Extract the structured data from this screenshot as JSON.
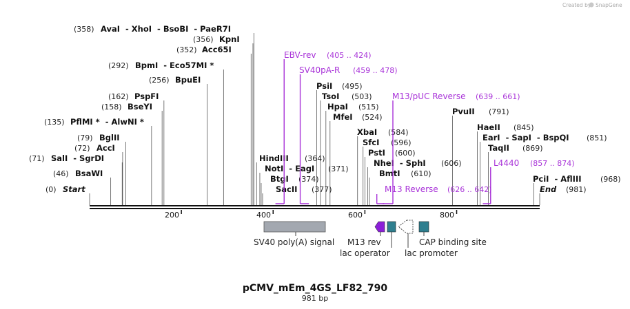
{
  "header": {
    "credit": "Created by",
    "brand": "SnapGene"
  },
  "map": {
    "title": "pCMV_mEm_4GS_LF82_790",
    "length_label": "981 bp",
    "length": 981
  },
  "ticks": [
    {
      "label": "200",
      "value": 200
    },
    {
      "label": "400",
      "value": 400
    },
    {
      "label": "600",
      "value": 600
    },
    {
      "label": "800",
      "value": 800
    }
  ],
  "sites": [
    {
      "pos": 358,
      "pos_label": "(358)",
      "names": "AvaI  - XhoI  - BsoBI  - PaeR7I"
    },
    {
      "pos": 356,
      "pos_label": "(356)",
      "names": "KpnI"
    },
    {
      "pos": 352,
      "pos_label": "(352)",
      "names": "Acc65I"
    },
    {
      "pos": 292,
      "pos_label": "(292)",
      "names": "BpmI  - Eco57MI *"
    },
    {
      "pos": 256,
      "pos_label": "(256)",
      "names": "BpuEI"
    },
    {
      "pos": 162,
      "pos_label": "(162)",
      "names": "PspFI"
    },
    {
      "pos": 158,
      "pos_label": "(158)",
      "names": "BseYI"
    },
    {
      "pos": 135,
      "pos_label": "(135)",
      "names": "PflMI *  - AlwNI *"
    },
    {
      "pos": 79,
      "pos_label": "(79)",
      "names": "BglII"
    },
    {
      "pos": 72,
      "pos_label": "(72)",
      "names": "AccI"
    },
    {
      "pos": 71,
      "pos_label": "(71)",
      "names": "SalI  - SgrDI"
    },
    {
      "pos": 46,
      "pos_label": "(46)",
      "names": "BsaWI"
    },
    {
      "pos": 0,
      "pos_label": "(0)",
      "names": "Start"
    },
    {
      "pos": 364,
      "pos_label": "(364)",
      "names": "HindIII"
    },
    {
      "pos": 371,
      "pos_label": "(371)",
      "names": "NotI  - EagI"
    },
    {
      "pos": 374,
      "pos_label": "(374)",
      "names": "BtgI"
    },
    {
      "pos": 377,
      "pos_label": "(377)",
      "names": "SacII"
    },
    {
      "pos": 495,
      "pos_label": "(495)",
      "names": "PsiI"
    },
    {
      "pos": 503,
      "pos_label": "(503)",
      "names": "TsoI"
    },
    {
      "pos": 515,
      "pos_label": "(515)",
      "names": "HpaI"
    },
    {
      "pos": 524,
      "pos_label": "(524)",
      "names": "MfeI"
    },
    {
      "pos": 584,
      "pos_label": "(584)",
      "names": "XbaI"
    },
    {
      "pos": 596,
      "pos_label": "(596)",
      "names": "SfcI"
    },
    {
      "pos": 600,
      "pos_label": "(600)",
      "names": "PstI"
    },
    {
      "pos": 606,
      "pos_label": "(606)",
      "names": "NheI  - SphI"
    },
    {
      "pos": 610,
      "pos_label": "(610)",
      "names": "BmtI"
    },
    {
      "pos": 791,
      "pos_label": "(791)",
      "names": "PvuII"
    },
    {
      "pos": 845,
      "pos_label": "(845)",
      "names": "HaeII"
    },
    {
      "pos": 851,
      "pos_label": "(851)",
      "names": "EarI  - SapI  - BspQI"
    },
    {
      "pos": 869,
      "pos_label": "(869)",
      "names": "TaqII"
    },
    {
      "pos": 968,
      "pos_label": "(968)",
      "names": "PciI  - AflIII"
    },
    {
      "pos": 981,
      "pos_label": "(981)",
      "names": "End"
    }
  ],
  "primers": [
    {
      "name": "EBV-rev",
      "range": "(405 .. 424)",
      "start": 405,
      "end": 424
    },
    {
      "name": "SV40pA-R",
      "range": "(459 .. 478)",
      "start": 459,
      "end": 478
    },
    {
      "name": "M13/pUC Reverse",
      "range": "(639 .. 661)",
      "start": 639,
      "end": 661
    },
    {
      "name": "L4440",
      "range": "(857 .. 874)",
      "start": 857,
      "end": 874
    },
    {
      "name": "M13 Reverse",
      "range": "(626 .. 642)",
      "start": 626,
      "end": 642
    }
  ],
  "features": [
    {
      "label": "SV40 poly(A) signal",
      "color": "#a3a8b0"
    },
    {
      "label": "M13 rev",
      "color": "#8b1fd8"
    },
    {
      "label": "lac operator",
      "color": "#2f7f8f"
    },
    {
      "label": "lac promoter",
      "color": "#ffffff"
    },
    {
      "label": "CAP binding site",
      "color": "#2f7f8f"
    }
  ]
}
